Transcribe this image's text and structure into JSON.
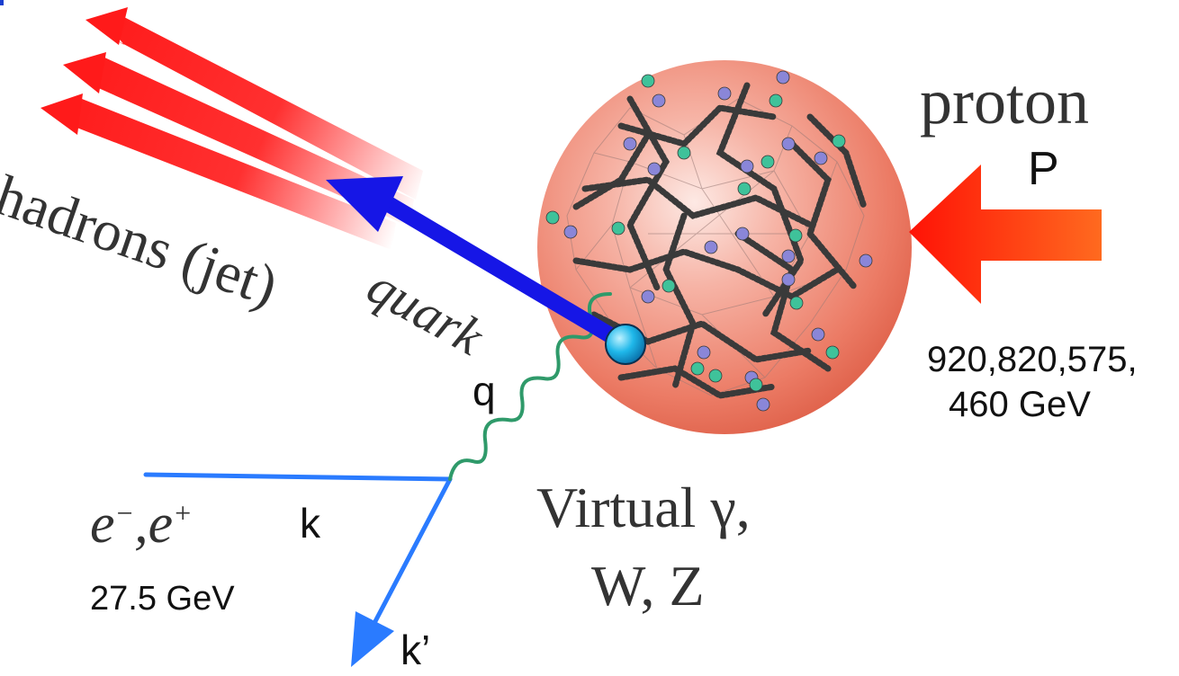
{
  "labels": {
    "hadrons": "hadrons (jet)",
    "quark": "quark",
    "proton": "proton",
    "proton_symbol": "P",
    "proton_energy_line1": "920,820,575,",
    "proton_energy_line2": "460 GeV",
    "photon_momentum": "q",
    "lepton_in_momentum": "k",
    "lepton_out_momentum": "k’",
    "lepton_energy": "27.5 GeV",
    "exchange_line1": "Virtual γ,",
    "exchange_line2": "W, Z"
  },
  "lepton_symbol": {
    "e1": "e",
    "sup1": "−",
    "comma": ",",
    "e2": "e",
    "sup2": "+"
  },
  "colors": {
    "jet_arrows": "#ff2a2a",
    "quark_arrow": "#1616e6",
    "lepton_lines": "#2a7bff",
    "photon_wave": "#2f9a6a",
    "proton_sphere": "#f08a78",
    "proton_arrow_head": "#ff1a10",
    "proton_arrow_tail": "#ff6a20",
    "vertex": "#18b8e8",
    "gluons": "#333333",
    "quark_green": "#3fc29a",
    "quark_purple": "#8a86d8"
  }
}
